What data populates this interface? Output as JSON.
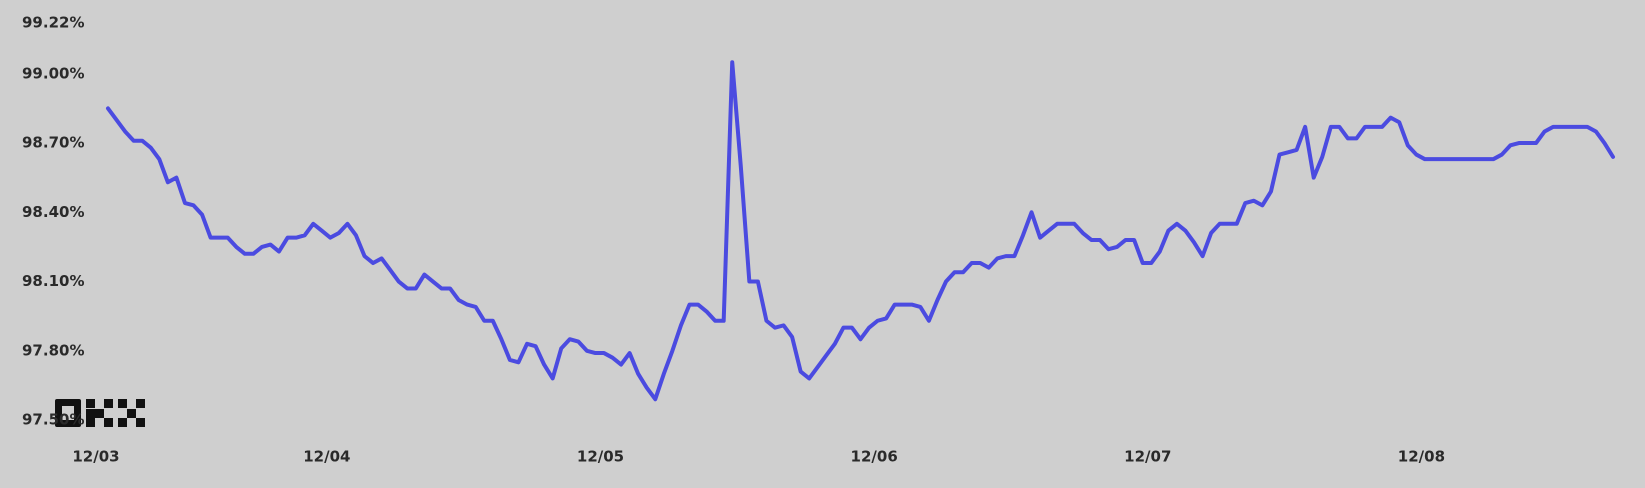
{
  "chart_data": {
    "type": "line",
    "categories": [
      "12/03",
      null,
      null,
      null,
      null,
      null,
      null,
      null,
      null,
      null,
      null,
      null,
      null,
      null,
      null,
      null,
      null,
      null,
      null,
      null,
      null,
      null,
      null,
      null,
      null,
      null,
      null,
      "12/04",
      null,
      null,
      null,
      null,
      null,
      null,
      null,
      null,
      null,
      null,
      null,
      null,
      null,
      null,
      null,
      null,
      null,
      null,
      null,
      null,
      null,
      null,
      null,
      null,
      null,
      null,
      null,
      null,
      null,
      null,
      null,
      "12/05",
      null,
      null,
      null,
      null,
      null,
      null,
      null,
      null,
      null,
      null,
      null,
      null,
      null,
      null,
      null,
      null,
      null,
      null,
      null,
      null,
      null,
      null,
      null,
      null,
      null,
      null,
      null,
      null,
      null,
      null,
      null,
      "12/06",
      null,
      null,
      null,
      null,
      null,
      null,
      null,
      null,
      null,
      null,
      null,
      null,
      null,
      null,
      null,
      null,
      null,
      null,
      null,
      null,
      null,
      null,
      null,
      null,
      null,
      null,
      null,
      null,
      null,
      null,
      null,
      "12/07",
      null,
      null,
      null,
      null,
      null,
      null,
      null,
      null,
      null,
      null,
      null,
      null,
      null,
      null,
      null,
      null,
      null,
      null,
      null,
      null,
      null,
      null,
      null,
      null,
      null,
      null,
      null,
      null,
      null,
      null,
      null,
      "12/08",
      null,
      null,
      null,
      null,
      null,
      null,
      null,
      null,
      null,
      null,
      null,
      null,
      null,
      null,
      null,
      null,
      null,
      null,
      null,
      null,
      null
    ],
    "values": [
      98.85,
      98.8,
      98.75,
      98.71,
      98.71,
      98.68,
      98.63,
      98.53,
      98.55,
      98.44,
      98.43,
      98.39,
      98.29,
      98.29,
      98.29,
      98.25,
      98.22,
      98.22,
      98.25,
      98.26,
      98.23,
      98.29,
      98.29,
      98.3,
      98.35,
      98.32,
      98.29,
      98.31,
      98.35,
      98.3,
      98.21,
      98.18,
      98.2,
      98.15,
      98.1,
      98.07,
      98.07,
      98.13,
      98.1,
      98.07,
      98.07,
      98.02,
      98.0,
      97.99,
      97.93,
      97.93,
      97.85,
      97.76,
      97.75,
      97.83,
      97.82,
      97.74,
      97.68,
      97.81,
      97.85,
      97.84,
      97.8,
      97.79,
      97.79,
      97.77,
      97.74,
      97.79,
      97.7,
      97.64,
      97.59,
      97.7,
      97.8,
      97.91,
      98.0,
      98.0,
      97.97,
      97.93,
      97.93,
      99.05,
      98.6,
      98.1,
      98.1,
      97.93,
      97.9,
      97.91,
      97.86,
      97.71,
      97.68,
      97.73,
      97.78,
      97.83,
      97.9,
      97.9,
      97.85,
      97.9,
      97.93,
      97.94,
      98.0,
      98.0,
      98.0,
      97.99,
      97.93,
      98.02,
      98.1,
      98.14,
      98.14,
      98.18,
      98.18,
      98.16,
      98.2,
      98.21,
      98.21,
      98.3,
      98.4,
      98.29,
      98.32,
      98.35,
      98.35,
      98.35,
      98.31,
      98.28,
      98.28,
      98.24,
      98.25,
      98.28,
      98.28,
      98.18,
      98.18,
      98.23,
      98.32,
      98.35,
      98.32,
      98.27,
      98.21,
      98.31,
      98.35,
      98.35,
      98.35,
      98.44,
      98.45,
      98.43,
      98.49,
      98.65,
      98.66,
      98.67,
      98.77,
      98.55,
      98.64,
      98.77,
      98.77,
      98.72,
      98.72,
      98.77,
      98.77,
      98.77,
      98.81,
      98.79,
      98.69,
      98.65,
      98.63,
      98.63,
      98.63,
      98.63,
      98.63,
      98.63,
      98.63,
      98.63,
      98.63,
      98.65,
      98.69,
      98.7,
      98.7,
      98.7,
      98.75,
      98.77,
      98.77,
      98.77,
      98.77,
      98.77,
      98.75,
      98.7,
      98.64
    ],
    "color": "#4b4be0",
    "ylim": [
      97.5,
      99.22
    ],
    "yticks": [
      {
        "value": 97.5,
        "label": "97.50%"
      },
      {
        "value": 97.8,
        "label": "97.80%"
      },
      {
        "value": 98.1,
        "label": "98.10%"
      },
      {
        "value": 98.4,
        "label": "98.40%"
      },
      {
        "value": 98.7,
        "label": "98.70%"
      },
      {
        "value": 99.0,
        "label": "99.00%"
      },
      {
        "value": 99.22,
        "label": "99.22%"
      }
    ],
    "grid": false
  }
}
